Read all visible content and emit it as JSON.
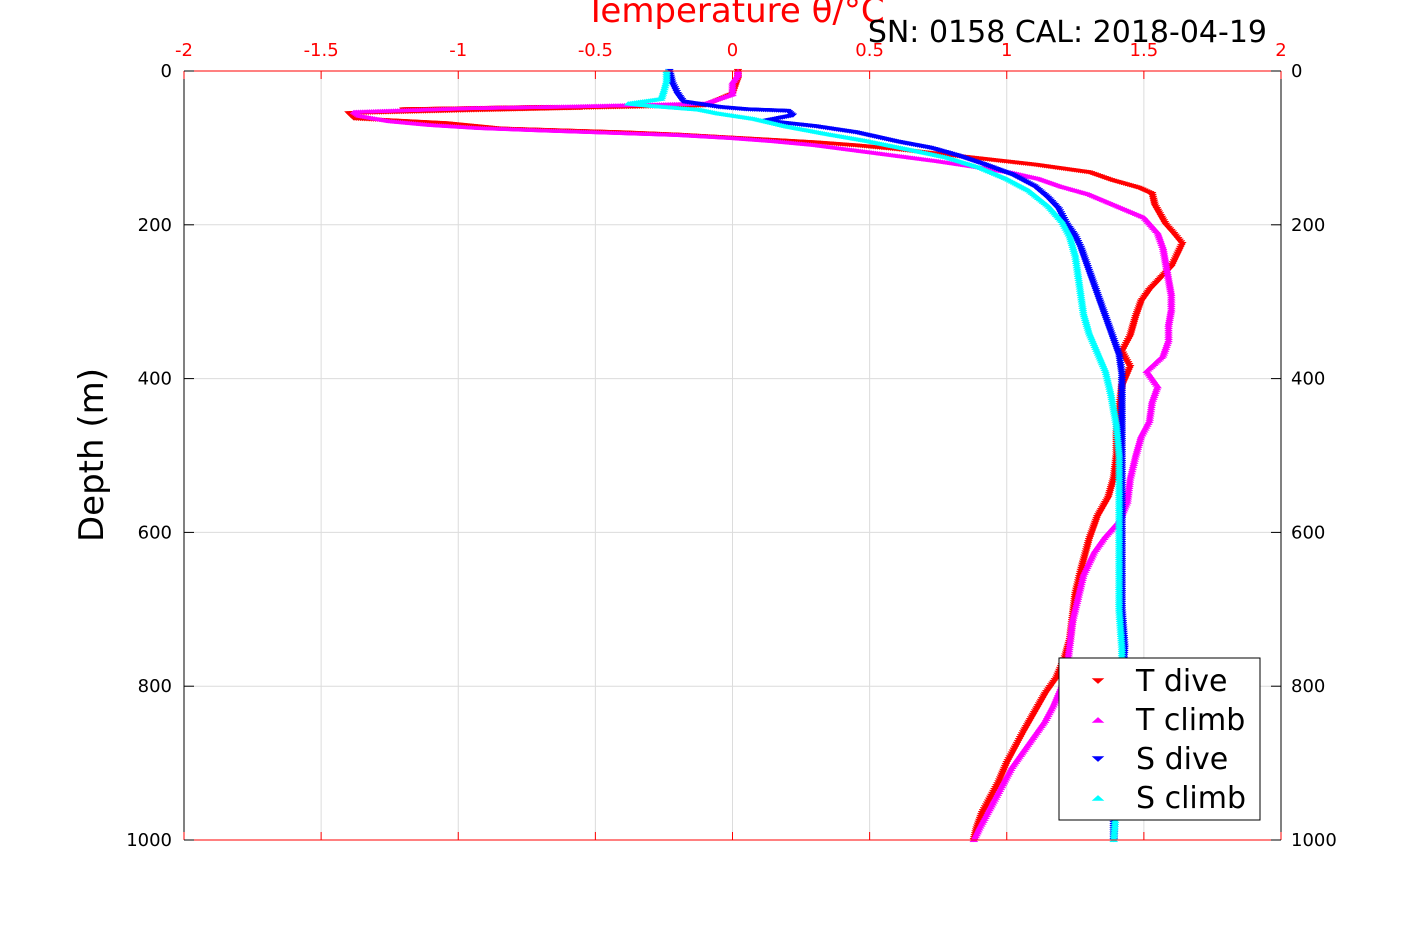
{
  "chart_data": {
    "type": "scatter",
    "title": "Temperature θ/°C",
    "subtitle": "SN: 0158  CAL: 2018-04-19",
    "xlabel": "",
    "ylabel": "Depth (m)",
    "xlim": [
      -2,
      2
    ],
    "ylim": [
      0,
      1000
    ],
    "y_reversed": true,
    "x_ticks": [
      -2,
      -1.5,
      -1,
      -0.5,
      0,
      0.5,
      1,
      1.5,
      2
    ],
    "x_tick_labels": [
      "-2",
      "-1.5",
      "-1",
      "-0.5",
      "0",
      "0.5",
      "1",
      "1.5",
      "2"
    ],
    "y_ticks": [
      0,
      200,
      400,
      600,
      800,
      1000
    ],
    "y_tick_labels": [
      "0",
      "200",
      "400",
      "600",
      "800",
      "1000"
    ],
    "grid": true,
    "legend_position": "bottom-right",
    "series": [
      {
        "name": "T dive",
        "color": "#ff0000",
        "marker": "triangle-down",
        "points": [
          [
            0.02,
            0
          ],
          [
            0.02,
            10
          ],
          [
            0.01,
            20
          ],
          [
            0.0,
            30
          ],
          [
            -0.1,
            45
          ],
          [
            -0.85,
            50
          ],
          [
            -1.2,
            50
          ],
          [
            -0.7,
            47
          ],
          [
            -0.55,
            48
          ],
          [
            -1.4,
            55
          ],
          [
            -1.38,
            62
          ],
          [
            -1.05,
            68
          ],
          [
            -0.85,
            75
          ],
          [
            -0.4,
            80
          ],
          [
            -0.2,
            83
          ],
          [
            0.0,
            87
          ],
          [
            0.15,
            90
          ],
          [
            0.3,
            93
          ],
          [
            0.45,
            97
          ],
          [
            0.6,
            102
          ],
          [
            0.75,
            108
          ],
          [
            0.9,
            114
          ],
          [
            1.0,
            118
          ],
          [
            1.1,
            122
          ],
          [
            1.2,
            127
          ],
          [
            1.3,
            132
          ],
          [
            1.38,
            142
          ],
          [
            1.48,
            152
          ],
          [
            1.53,
            160
          ],
          [
            1.54,
            175
          ],
          [
            1.58,
            200
          ],
          [
            1.61,
            212
          ],
          [
            1.64,
            225
          ],
          [
            1.62,
            240
          ],
          [
            1.6,
            255
          ],
          [
            1.56,
            270
          ],
          [
            1.52,
            285
          ],
          [
            1.49,
            300
          ],
          [
            1.47,
            320
          ],
          [
            1.45,
            345
          ],
          [
            1.42,
            365
          ],
          [
            1.45,
            385
          ],
          [
            1.42,
            410
          ],
          [
            1.41,
            440
          ],
          [
            1.4,
            470
          ],
          [
            1.4,
            500
          ],
          [
            1.39,
            530
          ],
          [
            1.37,
            555
          ],
          [
            1.33,
            580
          ],
          [
            1.3,
            610
          ],
          [
            1.27,
            650
          ],
          [
            1.25,
            680
          ],
          [
            1.24,
            710
          ],
          [
            1.23,
            740
          ],
          [
            1.21,
            765
          ],
          [
            1.18,
            790
          ],
          [
            1.14,
            810
          ],
          [
            1.1,
            835
          ],
          [
            1.06,
            860
          ],
          [
            1.03,
            880
          ],
          [
            1.0,
            900
          ],
          [
            0.97,
            925
          ],
          [
            0.94,
            945
          ],
          [
            0.91,
            965
          ],
          [
            0.89,
            985
          ],
          [
            0.88,
            1000
          ]
        ]
      },
      {
        "name": "T climb",
        "color": "#ff00ff",
        "marker": "triangle-up",
        "points": [
          [
            0.88,
            1000
          ],
          [
            0.9,
            985
          ],
          [
            0.93,
            965
          ],
          [
            0.96,
            945
          ],
          [
            0.99,
            925
          ],
          [
            1.02,
            905
          ],
          [
            1.06,
            885
          ],
          [
            1.1,
            865
          ],
          [
            1.14,
            845
          ],
          [
            1.17,
            825
          ],
          [
            1.2,
            800
          ],
          [
            1.22,
            775
          ],
          [
            1.23,
            745
          ],
          [
            1.24,
            715
          ],
          [
            1.26,
            685
          ],
          [
            1.28,
            655
          ],
          [
            1.32,
            625
          ],
          [
            1.36,
            605
          ],
          [
            1.41,
            585
          ],
          [
            1.44,
            560
          ],
          [
            1.45,
            530
          ],
          [
            1.47,
            500
          ],
          [
            1.49,
            475
          ],
          [
            1.52,
            455
          ],
          [
            1.53,
            430
          ],
          [
            1.55,
            410
          ],
          [
            1.51,
            390
          ],
          [
            1.57,
            370
          ],
          [
            1.59,
            350
          ],
          [
            1.59,
            330
          ],
          [
            1.6,
            310
          ],
          [
            1.6,
            290
          ],
          [
            1.59,
            270
          ],
          [
            1.58,
            250
          ],
          [
            1.57,
            230
          ],
          [
            1.55,
            210
          ],
          [
            1.5,
            190
          ],
          [
            1.4,
            175
          ],
          [
            1.3,
            160
          ],
          [
            1.2,
            150
          ],
          [
            1.12,
            140
          ],
          [
            1.02,
            132
          ],
          [
            0.9,
            125
          ],
          [
            0.75,
            117
          ],
          [
            0.6,
            110
          ],
          [
            0.45,
            103
          ],
          [
            0.3,
            96
          ],
          [
            0.15,
            91
          ],
          [
            0.0,
            87
          ],
          [
            -0.2,
            83
          ],
          [
            -0.45,
            80
          ],
          [
            -0.7,
            77
          ],
          [
            -0.92,
            74
          ],
          [
            -1.1,
            70
          ],
          [
            -1.25,
            65
          ],
          [
            -1.36,
            58
          ],
          [
            -1.38,
            53
          ],
          [
            -0.95,
            48
          ],
          [
            -0.6,
            46
          ],
          [
            -0.1,
            42
          ],
          [
            0.0,
            30
          ],
          [
            0.0,
            15
          ],
          [
            0.02,
            5
          ],
          [
            0.02,
            0
          ]
        ]
      },
      {
        "name": "S dive",
        "color": "#0000ff",
        "marker": "triangle-down",
        "points": [
          [
            -0.23,
            0
          ],
          [
            -0.22,
            15
          ],
          [
            -0.2,
            30
          ],
          [
            -0.18,
            40
          ],
          [
            -0.05,
            47
          ],
          [
            0.05,
            50
          ],
          [
            0.2,
            52
          ],
          [
            0.22,
            58
          ],
          [
            0.12,
            65
          ],
          [
            0.3,
            72
          ],
          [
            0.45,
            80
          ],
          [
            0.6,
            92
          ],
          [
            0.72,
            100
          ],
          [
            0.82,
            110
          ],
          [
            0.92,
            122
          ],
          [
            1.02,
            135
          ],
          [
            1.1,
            150
          ],
          [
            1.15,
            165
          ],
          [
            1.19,
            180
          ],
          [
            1.22,
            200
          ],
          [
            1.25,
            215
          ],
          [
            1.27,
            230
          ],
          [
            1.29,
            250
          ],
          [
            1.31,
            270
          ],
          [
            1.33,
            290
          ],
          [
            1.35,
            310
          ],
          [
            1.37,
            330
          ],
          [
            1.39,
            350
          ],
          [
            1.41,
            370
          ],
          [
            1.42,
            395
          ],
          [
            1.42,
            420
          ],
          [
            1.42,
            450
          ],
          [
            1.42,
            480
          ],
          [
            1.42,
            520
          ],
          [
            1.42,
            560
          ],
          [
            1.42,
            600
          ],
          [
            1.42,
            650
          ],
          [
            1.42,
            700
          ],
          [
            1.43,
            750
          ],
          [
            1.42,
            800
          ],
          [
            1.41,
            850
          ],
          [
            1.4,
            900
          ],
          [
            1.39,
            950
          ],
          [
            1.39,
            1000
          ]
        ]
      },
      {
        "name": "S climb",
        "color": "#00ffff",
        "marker": "triangle-up",
        "points": [
          [
            1.39,
            1000
          ],
          [
            1.4,
            950
          ],
          [
            1.4,
            900
          ],
          [
            1.41,
            850
          ],
          [
            1.42,
            800
          ],
          [
            1.42,
            750
          ],
          [
            1.41,
            700
          ],
          [
            1.41,
            650
          ],
          [
            1.41,
            600
          ],
          [
            1.41,
            550
          ],
          [
            1.41,
            500
          ],
          [
            1.4,
            460
          ],
          [
            1.38,
            420
          ],
          [
            1.36,
            390
          ],
          [
            1.33,
            365
          ],
          [
            1.3,
            340
          ],
          [
            1.28,
            315
          ],
          [
            1.27,
            290
          ],
          [
            1.26,
            265
          ],
          [
            1.25,
            240
          ],
          [
            1.23,
            215
          ],
          [
            1.2,
            195
          ],
          [
            1.15,
            175
          ],
          [
            1.08,
            155
          ],
          [
            1.0,
            140
          ],
          [
            0.9,
            125
          ],
          [
            0.78,
            112
          ],
          [
            0.62,
            100
          ],
          [
            0.48,
            90
          ],
          [
            0.35,
            82
          ],
          [
            0.2,
            72
          ],
          [
            0.08,
            62
          ],
          [
            -0.05,
            55
          ],
          [
            -0.12,
            50
          ],
          [
            -0.3,
            45
          ],
          [
            -0.38,
            42
          ],
          [
            -0.26,
            36
          ],
          [
            -0.25,
            25
          ],
          [
            -0.24,
            12
          ],
          [
            -0.24,
            0
          ]
        ]
      }
    ]
  }
}
